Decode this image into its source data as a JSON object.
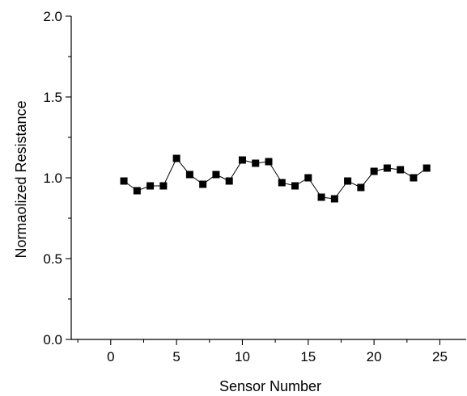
{
  "chart_data": {
    "type": "line",
    "title": "",
    "xlabel": "Sensor Number",
    "ylabel": "Normaolized Resistance",
    "xlim": [
      -3,
      27
    ],
    "ylim": [
      0.0,
      2.0
    ],
    "x_ticks": [
      0,
      5,
      10,
      15,
      20,
      25
    ],
    "x_tick_labels": [
      "0",
      "5",
      "10",
      "15",
      "20",
      "25"
    ],
    "y_ticks": [
      0.0,
      0.5,
      1.0,
      1.5,
      2.0
    ],
    "y_tick_labels": [
      "0.0",
      "0.5",
      "1.0",
      "1.5",
      "2.0"
    ],
    "grid": false,
    "marker": "square",
    "series": [
      {
        "x": [
          1,
          2,
          3,
          4,
          5,
          6,
          7,
          8,
          9,
          10,
          11,
          12,
          13,
          14,
          15,
          16,
          17,
          18,
          19,
          20,
          21,
          22,
          23,
          24
        ],
        "y": [
          0.98,
          0.92,
          0.95,
          0.95,
          1.12,
          1.02,
          0.96,
          1.02,
          0.98,
          1.11,
          1.09,
          1.1,
          0.97,
          0.95,
          1.0,
          0.88,
          0.87,
          0.98,
          0.94,
          1.04,
          1.06,
          1.05,
          1.0,
          1.06
        ],
        "color": "#000000"
      }
    ]
  }
}
